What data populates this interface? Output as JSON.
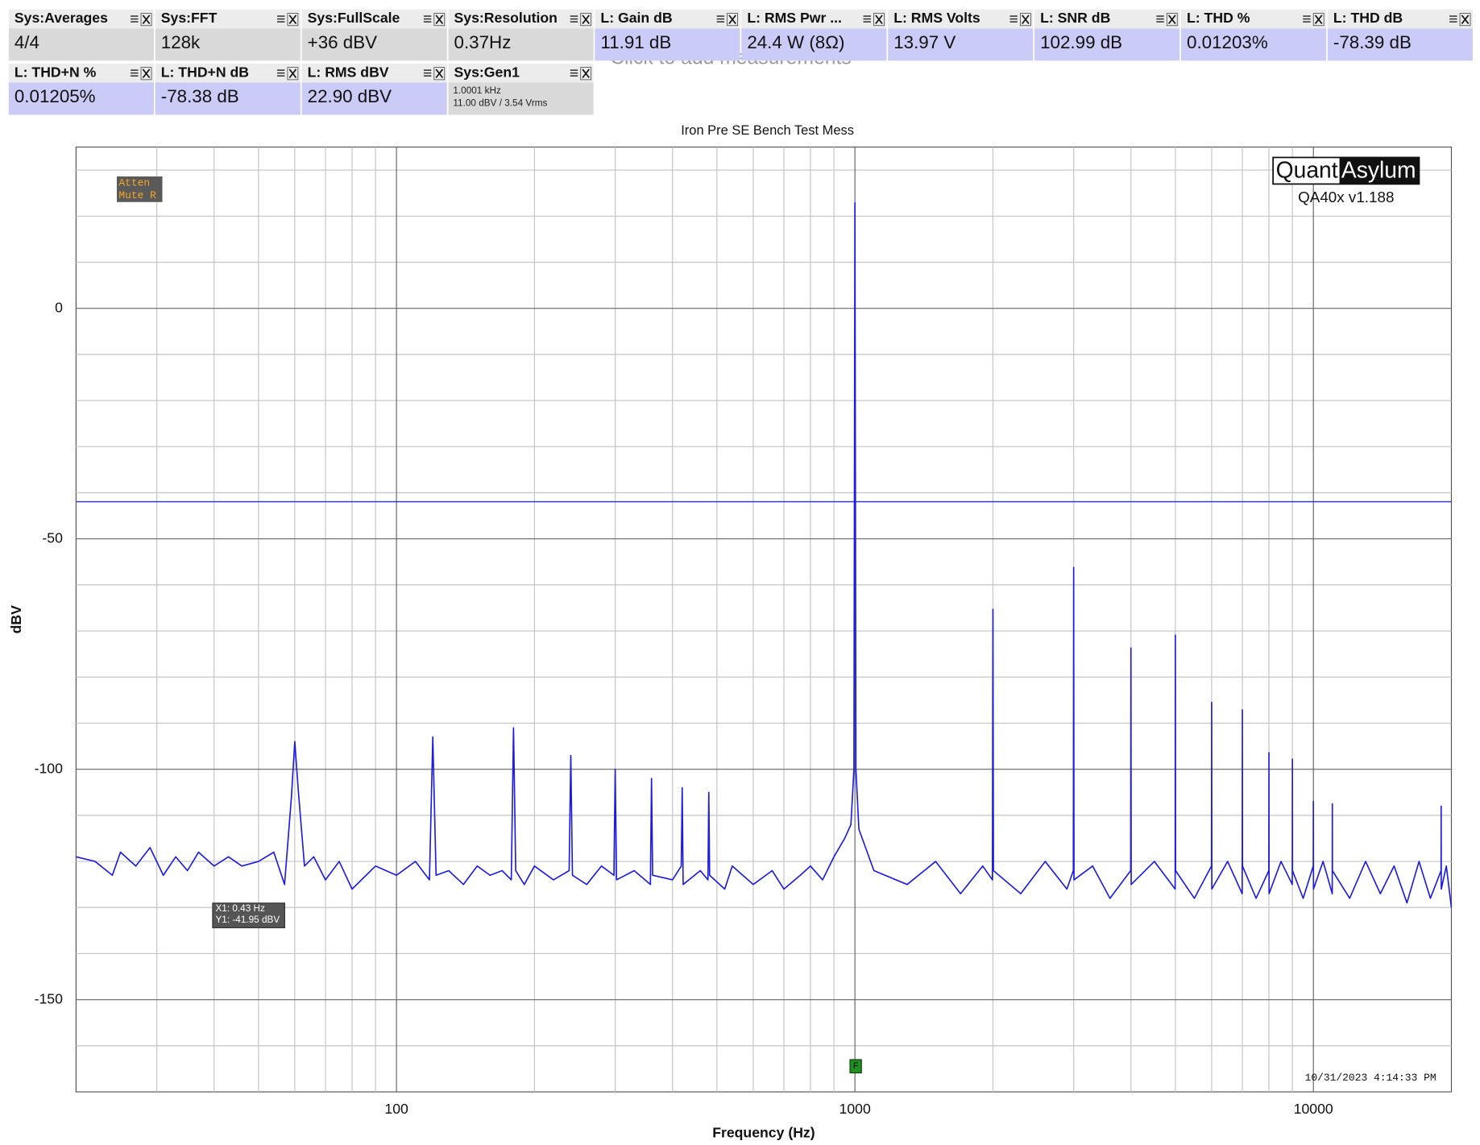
{
  "tiles": [
    [
      {
        "label": "Sys:Averages",
        "value": "4/4",
        "color": "#d9d9d9"
      },
      {
        "label": "Sys:FFT",
        "value": "128k",
        "color": "#d9d9d9"
      },
      {
        "label": "Sys:FullScale",
        "value": "+36 dBV",
        "color": "#d9d9d9"
      },
      {
        "label": "Sys:Resolution",
        "value": "0.37Hz",
        "color": "#d9d9d9"
      },
      {
        "label": "L: Gain dB",
        "value": "11.91 dB",
        "color": "#cbcbf7"
      },
      {
        "label": "L: RMS Pwr ...",
        "value": "24.4 W (8Ω)",
        "color": "#cbcbf7"
      },
      {
        "label": "L: RMS Volts",
        "value": "13.97 V",
        "color": "#cbcbf7"
      },
      {
        "label": "L: SNR dB",
        "value": "102.99 dB",
        "color": "#cbcbf7"
      },
      {
        "label": "L: THD %",
        "value": "0.01203%",
        "color": "#cbcbf7"
      },
      {
        "label": "L: THD dB",
        "value": "-78.39 dB",
        "color": "#cbcbf7"
      }
    ],
    [
      {
        "label": "L: THD+N %",
        "value": "0.01205%",
        "color": "#cbcbf7"
      },
      {
        "label": "L: THD+N dB",
        "value": "-78.38 dB",
        "color": "#cbcbf7"
      },
      {
        "label": "L: RMS dBV",
        "value": "22.90 dBV",
        "color": "#cbcbf7"
      },
      {
        "label": "Sys:Gen1",
        "lines": [
          "1.0001 kHz",
          "11.00 dBV  / 3.54 Vrms"
        ],
        "color": "#d9d9d9"
      }
    ]
  ],
  "placeholder": "Click to add measurements",
  "chart_data": {
    "type": "line",
    "title": "Iron Pre SE Bench Test Mess",
    "xlabel": "Frequency (Hz)",
    "ylabel": "dBV",
    "xscale": "log",
    "grid": true,
    "xlim": [
      20,
      20000
    ],
    "ylim": [
      -170,
      35
    ],
    "xticks": [
      100,
      1000,
      10000
    ],
    "xminorticks": [
      30,
      40,
      50,
      60,
      70,
      80,
      90,
      200,
      300,
      400,
      500,
      600,
      700,
      800,
      900,
      2000,
      3000,
      4000,
      5000,
      6000,
      7000,
      8000,
      9000
    ],
    "yticks": [
      0,
      -50,
      -100,
      -150
    ],
    "yminorticks": [
      30,
      20,
      10,
      -10,
      -20,
      -30,
      -40,
      -60,
      -70,
      -80,
      -90,
      -110,
      -120,
      -130,
      -140,
      -160
    ],
    "x": [
      20,
      22,
      24,
      25,
      27,
      29,
      31,
      33,
      35,
      37,
      40,
      43,
      46,
      50,
      54,
      57,
      59,
      60,
      61,
      63,
      66,
      70,
      75,
      80,
      90,
      100,
      110,
      118,
      120,
      122,
      130,
      140,
      150,
      160,
      170,
      178,
      180,
      182,
      190,
      200,
      220,
      238,
      240,
      242,
      260,
      280,
      298,
      300,
      302,
      330,
      358,
      360,
      362,
      400,
      418,
      420,
      422,
      460,
      478,
      480,
      482,
      520,
      540,
      600,
      660,
      700,
      760,
      800,
      850,
      900,
      950,
      980,
      995,
      1000,
      1005,
      1020,
      1100,
      1300,
      1500,
      1700,
      1900,
      1995,
      2000,
      2005,
      2300,
      2600,
      2900,
      2995,
      3000,
      3005,
      3300,
      3600,
      3995,
      4000,
      4005,
      4500,
      4995,
      5000,
      5005,
      5500,
      5995,
      6000,
      6005,
      6500,
      6995,
      7000,
      7005,
      7500,
      7995,
      8000,
      8005,
      8500,
      8995,
      9000,
      9005,
      9500,
      9995,
      10000,
      10005,
      10500,
      10995,
      11000,
      11005,
      12000,
      13000,
      14000,
      15000,
      16000,
      17000,
      18000,
      18990,
      19000,
      19010,
      19500,
      20000
    ],
    "series": [
      {
        "name": "L",
        "color": "#1c1ce6",
        "values": [
          -119,
          -120,
          -123,
          -118,
          -121,
          -117,
          -123,
          -119,
          -122,
          -118,
          -121,
          -119,
          -121,
          -120,
          -118,
          -125,
          -106,
          -94,
          -104,
          -121,
          -119,
          -124,
          -120,
          -126,
          -121,
          -123,
          -120,
          -124,
          -93,
          -123,
          -122,
          -125,
          -121,
          -123,
          -122,
          -124,
          -91,
          -122,
          -125,
          -121,
          -124,
          -122,
          -97,
          -123,
          -125,
          -121,
          -123,
          -100,
          -124,
          -122,
          -125,
          -102,
          -123,
          -124,
          -121,
          -104,
          -125,
          -122,
          -124,
          -105,
          -123,
          -126,
          -121,
          -125,
          -122,
          -126,
          -123,
          -121,
          -124,
          -119,
          -115,
          -112,
          -100,
          22.9,
          -100,
          -113,
          -122,
          -125,
          -120,
          -127,
          -121,
          -124,
          -65.3,
          -122,
          -127,
          -120,
          -126,
          -122,
          -56.2,
          -124,
          -121,
          -128,
          -122,
          -73.7,
          -125,
          -120,
          -126,
          -70.9,
          -122,
          -128,
          -121,
          -85.5,
          -126,
          -120,
          -127,
          -87.1,
          -121,
          -128,
          -122,
          -96.4,
          -127,
          -120,
          -125,
          -97.8,
          -122,
          -128,
          -121,
          -107,
          -126,
          -120,
          -127,
          -107.5,
          -122,
          -128,
          -120,
          -127,
          -121,
          -129,
          -120,
          -128,
          -122,
          -108,
          -126,
          -121,
          -130
        ]
      }
    ],
    "hline": {
      "value": -41.95,
      "color": "#3a3ad8"
    },
    "annotations": [
      "X1: 0.43 Hz",
      "Y1: -41.95 dBV"
    ],
    "status": [
      "Atten",
      "Mute R"
    ],
    "logo": [
      "Quant",
      "Asylum"
    ],
    "version": "QA40x v1.188",
    "timestamp": "10/31/2023 4:14:33 PM",
    "marker": "F"
  }
}
